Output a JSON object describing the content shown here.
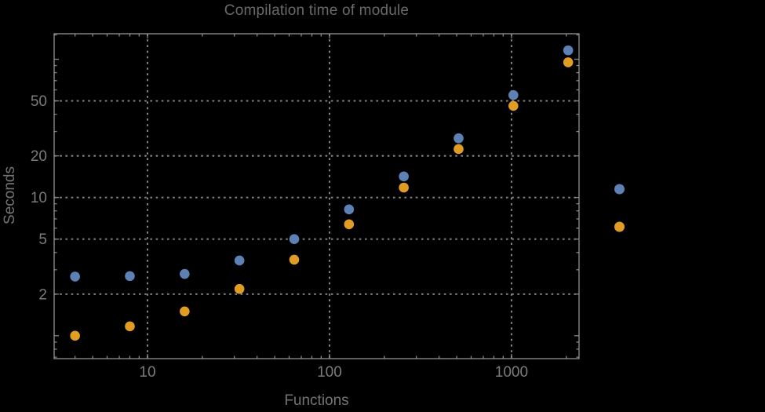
{
  "colors": {
    "background": "#000000",
    "frame": "#888888",
    "grid": "#8c8c8c",
    "tick_label": "#7b7b7b",
    "axis_label": "#747474",
    "title_text": "#696969",
    "series_blue": "#5e81b5",
    "series_orange": "#e19c24"
  },
  "chart_data": {
    "type": "scatter",
    "title": "Compilation time of module",
    "xlabel": "Functions",
    "ylabel": "Seconds",
    "x_scale": "log",
    "y_scale": "log",
    "xlim": [
      3.07,
      2350
    ],
    "ylim": [
      0.683,
      152.9
    ],
    "grid": {
      "style": "dotted",
      "x_values": [
        10,
        100,
        1000
      ],
      "y_values": [
        2,
        5,
        10,
        20,
        50
      ]
    },
    "x_ticks": {
      "major": [
        {
          "v": 10,
          "label": "10"
        },
        {
          "v": 100,
          "label": "100"
        },
        {
          "v": 1000,
          "label": "1000"
        }
      ],
      "minor": [
        4,
        5,
        6,
        7,
        8,
        9,
        20,
        30,
        40,
        50,
        60,
        70,
        80,
        90,
        200,
        300,
        400,
        500,
        600,
        700,
        800,
        900,
        2000
      ]
    },
    "y_ticks": {
      "major": [
        {
          "v": 2,
          "label": "2"
        },
        {
          "v": 5,
          "label": "5"
        },
        {
          "v": 10,
          "label": "10"
        },
        {
          "v": 20,
          "label": "20"
        },
        {
          "v": 50,
          "label": "50"
        }
      ],
      "major_unlabeled": [
        1,
        100
      ],
      "minor": [
        0.7,
        0.8,
        0.9,
        3,
        4,
        6,
        7,
        8,
        9,
        30,
        40,
        60,
        70,
        80,
        90,
        150
      ]
    },
    "x": [
      4,
      8,
      16,
      32,
      64,
      128,
      256,
      512,
      1024,
      2048
    ],
    "series": [
      {
        "name": "blue",
        "color": "#5e81b5",
        "values": [
          2.68,
          2.7,
          2.8,
          3.5,
          5.0,
          8.2,
          14.2,
          26.8,
          55,
          116
        ]
      },
      {
        "name": "orange",
        "color": "#e19c24",
        "values": [
          1.0,
          1.17,
          1.5,
          2.18,
          3.55,
          6.4,
          11.8,
          22.4,
          46,
          95
        ]
      }
    ],
    "legend": {
      "position": "outside-right",
      "entries": [
        {
          "series": "blue"
        },
        {
          "series": "orange"
        }
      ]
    }
  }
}
